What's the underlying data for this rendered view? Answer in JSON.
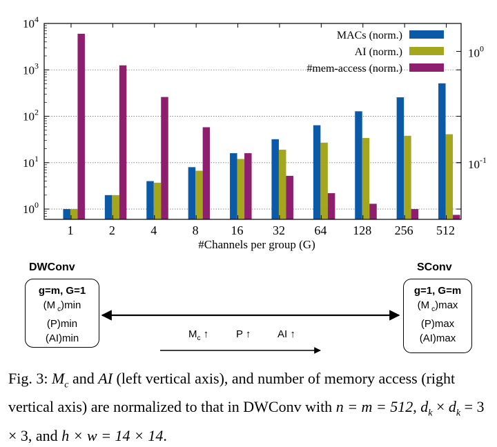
{
  "chart_data": {
    "type": "bar",
    "xlabel": "#Channels per group (G)",
    "categories": [
      "1",
      "2",
      "4",
      "8",
      "16",
      "32",
      "64",
      "128",
      "256",
      "512"
    ],
    "yscale": "log",
    "ylim": [
      0.6,
      10000
    ],
    "yticks": [
      {
        "v": 1,
        "e": "0"
      },
      {
        "v": 10,
        "e": "1"
      },
      {
        "v": 100,
        "e": "2"
      },
      {
        "v": 1000,
        "e": "3"
      },
      {
        "v": 10000,
        "e": "4"
      }
    ],
    "y2scale": "log",
    "y2ticks": [
      {
        "label": "10",
        "e": "0",
        "pos_value": 2500
      },
      {
        "label": "10",
        "e": "-1",
        "pos_value": 10
      }
    ],
    "series": [
      {
        "name": "MACs (norm.)",
        "color": "#0a5aa8",
        "values": [
          1,
          2,
          4,
          8,
          16,
          32,
          64,
          128,
          256,
          512
        ]
      },
      {
        "name": "AI (norm.)",
        "color": "#a4a61d",
        "values": [
          1,
          2,
          3.7,
          6.7,
          12,
          19,
          27,
          34,
          38,
          41
        ]
      },
      {
        "name": "#mem-access (norm.)",
        "color": "#8e1f6e",
        "values": [
          6000,
          1250,
          260,
          58,
          16,
          5.2,
          2.2,
          1.3,
          1.0,
          0.75
        ]
      }
    ]
  },
  "diagram": {
    "left_title": "DWConv",
    "left_lines": [
      "g=m, G=1",
      "(M ",
      "c",
      ")min",
      "(P)min",
      "(AI)min"
    ],
    "right_title": "SConv",
    "right_lines": [
      "g=1, G=m",
      "(M ",
      "c",
      ")max",
      "(P)max",
      "(AI)max"
    ],
    "arrow_labels": [
      "M",
      "c",
      "↑",
      "P ↑",
      "AI ↑"
    ]
  },
  "caption": {
    "p1": "Fig. 3: ",
    "mc": "M",
    "c": "c",
    "p2": " and ",
    "ai": "AI",
    "p3": " (left vertical axis), and number of memory access (right vertical axis) are normalized to that in DWConv with ",
    "eq1": "n = m = 512",
    "p4": ", ",
    "eq2": "d",
    "k1": "k",
    "x": " × ",
    "eq3": "d",
    "k2": "k",
    "eq4": " = 3 × 3",
    "p5": ", and ",
    "eq5": "h × w = 14 × 14",
    "p6": "."
  }
}
